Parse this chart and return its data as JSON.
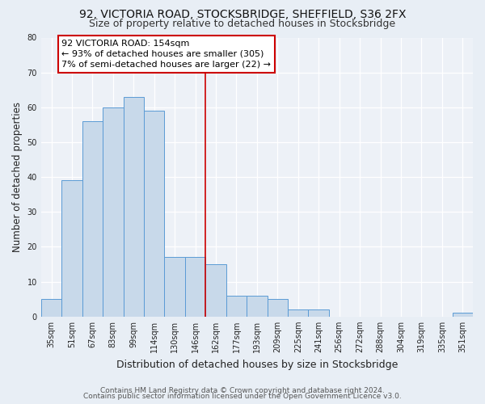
{
  "title": "92, VICTORIA ROAD, STOCKSBRIDGE, SHEFFIELD, S36 2FX",
  "subtitle": "Size of property relative to detached houses in Stocksbridge",
  "xlabel": "Distribution of detached houses by size in Stocksbridge",
  "ylabel": "Number of detached properties",
  "bar_labels": [
    "35sqm",
    "51sqm",
    "67sqm",
    "83sqm",
    "99sqm",
    "114sqm",
    "130sqm",
    "146sqm",
    "162sqm",
    "177sqm",
    "193sqm",
    "209sqm",
    "225sqm",
    "241sqm",
    "256sqm",
    "272sqm",
    "288sqm",
    "304sqm",
    "319sqm",
    "335sqm",
    "351sqm"
  ],
  "bar_heights": [
    5,
    39,
    56,
    60,
    63,
    59,
    17,
    17,
    15,
    6,
    6,
    5,
    2,
    2,
    0,
    0,
    0,
    0,
    0,
    0,
    1
  ],
  "bar_color": "#c8d9ea",
  "bar_edgecolor": "#5b9bd5",
  "ylim": [
    0,
    80
  ],
  "yticks": [
    0,
    10,
    20,
    30,
    40,
    50,
    60,
    70,
    80
  ],
  "vline_x": 7.5,
  "vline_color": "#cc0000",
  "annotation_title": "92 VICTORIA ROAD: 154sqm",
  "annotation_line1": "← 93% of detached houses are smaller (305)",
  "annotation_line2": "7% of semi-detached houses are larger (22) →",
  "annotation_box_color": "#cc0000",
  "footer1": "Contains HM Land Registry data © Crown copyright and database right 2024.",
  "footer2": "Contains public sector information licensed under the Open Government Licence v3.0.",
  "bg_color": "#e8eef5",
  "plot_bg_color": "#edf1f7",
  "grid_color": "#ffffff",
  "title_fontsize": 10,
  "subtitle_fontsize": 9,
  "xlabel_fontsize": 9,
  "ylabel_fontsize": 8.5,
  "tick_fontsize": 7,
  "annotation_fontsize": 8,
  "footer_fontsize": 6.5
}
